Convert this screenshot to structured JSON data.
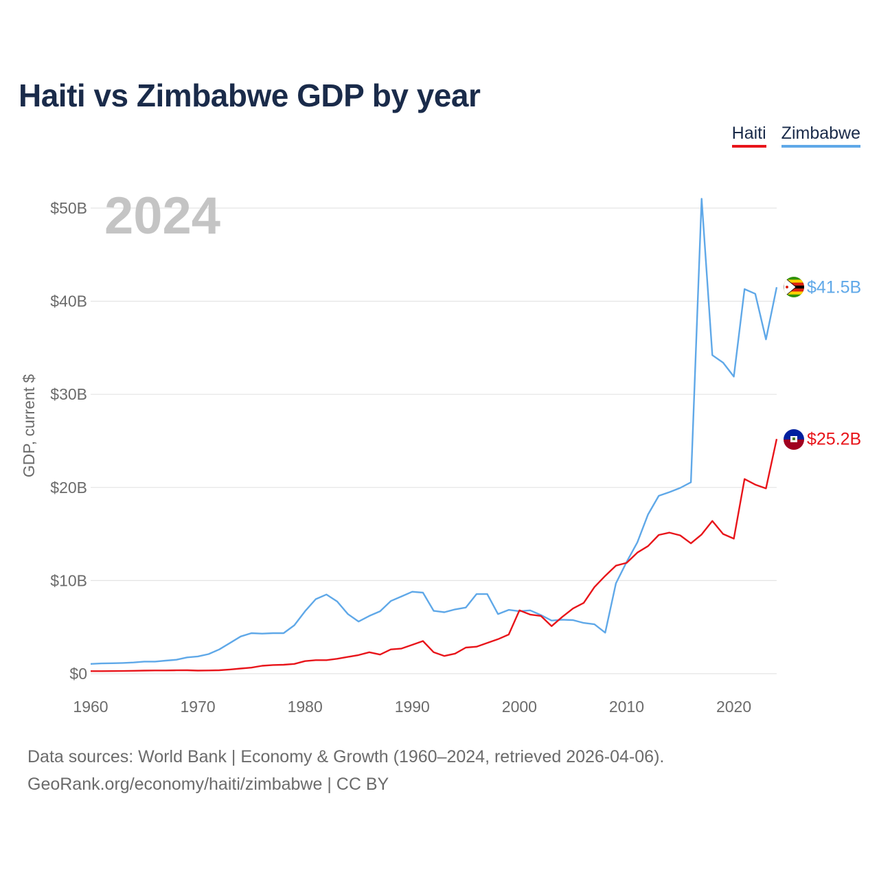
{
  "title": "Haiti vs Zimbabwe GDP by year",
  "legend": [
    {
      "label": "Haiti",
      "color": "#e8141a"
    },
    {
      "label": "Zimbabwe",
      "color": "#5fa8e8"
    }
  ],
  "source": {
    "line1": "Data sources: World Bank | Economy & Growth (1960–2024, retrieved 2026-04-06).",
    "line2": "GeoRank.org/economy/haiti/zimbabwe | CC BY"
  },
  "chart_data": {
    "type": "line",
    "title": "Haiti vs Zimbabwe GDP by year",
    "ylabel": "GDP, current $",
    "xlabel": "",
    "year_label": "2024",
    "xlim": [
      1960,
      2024
    ],
    "ylim": [
      0,
      52
    ],
    "x_ticks": [
      1960,
      1970,
      1980,
      1990,
      2000,
      2010,
      2020
    ],
    "y_ticks": [
      {
        "value": 0,
        "label": "$0"
      },
      {
        "value": 10,
        "label": "$10B"
      },
      {
        "value": 20,
        "label": "$20B"
      },
      {
        "value": 30,
        "label": "$30B"
      },
      {
        "value": 40,
        "label": "$40B"
      },
      {
        "value": 50,
        "label": "$50B"
      }
    ],
    "grid": true,
    "units": "billions of current US$",
    "x": [
      1960,
      1961,
      1962,
      1963,
      1964,
      1965,
      1966,
      1967,
      1968,
      1969,
      1970,
      1971,
      1972,
      1973,
      1974,
      1975,
      1976,
      1977,
      1978,
      1979,
      1980,
      1981,
      1982,
      1983,
      1984,
      1985,
      1986,
      1987,
      1988,
      1989,
      1990,
      1991,
      1992,
      1993,
      1994,
      1995,
      1996,
      1997,
      1998,
      1999,
      2000,
      2001,
      2002,
      2003,
      2004,
      2005,
      2006,
      2007,
      2008,
      2009,
      2010,
      2011,
      2012,
      2013,
      2014,
      2015,
      2016,
      2017,
      2018,
      2019,
      2020,
      2021,
      2022,
      2023,
      2024
    ],
    "series": [
      {
        "name": "Haiti",
        "color": "#e8141a",
        "end_label": "$25.2B",
        "values": [
          0.27,
          0.27,
          0.28,
          0.29,
          0.31,
          0.33,
          0.35,
          0.35,
          0.36,
          0.37,
          0.33,
          0.35,
          0.37,
          0.45,
          0.55,
          0.65,
          0.85,
          0.93,
          0.96,
          1.05,
          1.35,
          1.45,
          1.45,
          1.6,
          1.8,
          2.0,
          2.3,
          2.05,
          2.6,
          2.7,
          3.1,
          3.5,
          2.3,
          1.9,
          2.15,
          2.8,
          2.9,
          3.3,
          3.7,
          4.2,
          6.8,
          6.35,
          6.2,
          5.1,
          6.1,
          7.0,
          7.6,
          9.3,
          10.5,
          11.6,
          11.9,
          13.0,
          13.7,
          14.9,
          15.15,
          14.85,
          14.0,
          14.95,
          16.4,
          15.0,
          14.5,
          20.9,
          20.3,
          19.9,
          25.2
        ]
      },
      {
        "name": "Zimbabwe",
        "color": "#5fa8e8",
        "end_label": "$41.5B",
        "values": [
          1.05,
          1.1,
          1.12,
          1.15,
          1.2,
          1.3,
          1.3,
          1.4,
          1.5,
          1.75,
          1.85,
          2.1,
          2.6,
          3.3,
          4.0,
          4.35,
          4.3,
          4.35,
          4.35,
          5.2,
          6.7,
          8.0,
          8.5,
          7.75,
          6.4,
          5.6,
          6.2,
          6.7,
          7.8,
          8.3,
          8.8,
          8.7,
          6.75,
          6.6,
          6.9,
          7.1,
          8.55,
          8.55,
          6.4,
          6.85,
          6.7,
          6.8,
          6.3,
          5.7,
          5.8,
          5.75,
          5.45,
          5.3,
          4.4,
          9.7,
          12.0,
          14.1,
          17.1,
          19.1,
          19.5,
          19.95,
          20.55,
          51.0,
          34.2,
          33.4,
          31.9,
          41.3,
          40.8,
          35.9,
          41.5
        ]
      }
    ]
  }
}
